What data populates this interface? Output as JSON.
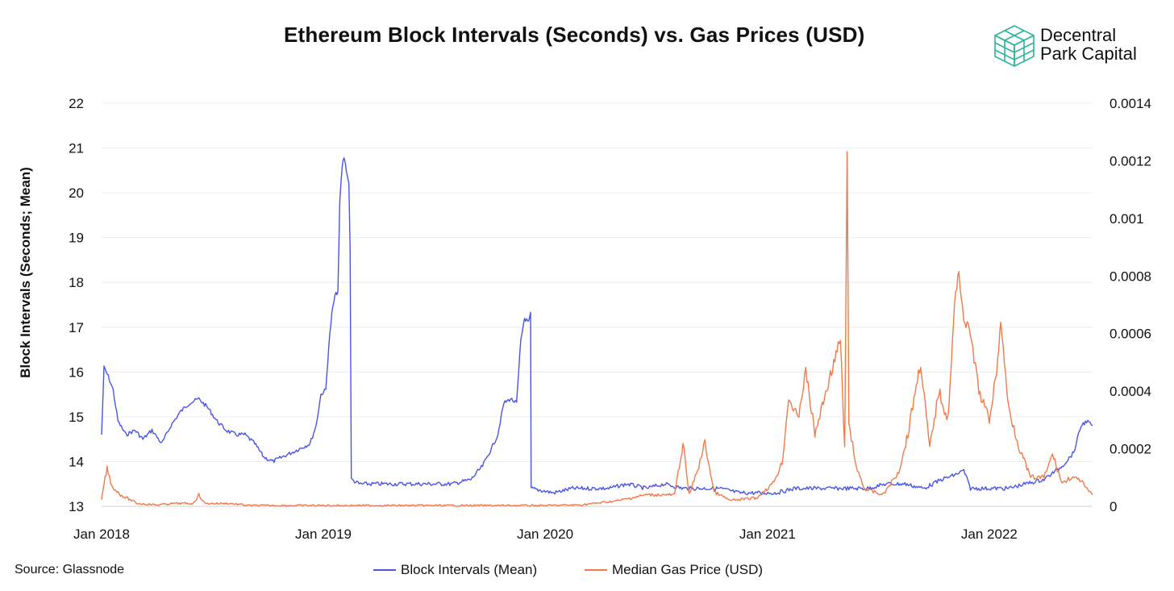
{
  "title": "Ethereum Block Intervals (Seconds) vs. Gas Prices (USD)",
  "brand": {
    "line1": "Decentral",
    "line2": "Park Capital",
    "icon": "cube-grid-icon",
    "color": "#2bb59a"
  },
  "source": "Source: Glassnode",
  "chart_data": {
    "type": "line",
    "title": "Ethereum Block Intervals (Seconds) vs. Gas Prices (USD)",
    "ylabel": "Block Intervals (Seconds; Mean)",
    "y_left_ticks": [
      "22",
      "21",
      "20",
      "19",
      "18",
      "17",
      "16",
      "15",
      "14",
      "13"
    ],
    "y_right_ticks": [
      "0.0014",
      "0.0012",
      "0.001",
      "0.0008",
      "0.0006",
      "0.0004",
      "0.0002",
      "0"
    ],
    "x_ticks": [
      "Jan 2018",
      "Jan 2019",
      "Jan 2020",
      "Jan 2021",
      "Jan 2022"
    ],
    "ylim_left": [
      13,
      22
    ],
    "ylim_right": [
      0,
      0.0014
    ],
    "xlim": [
      "2018-01-01",
      "2022-06-20"
    ],
    "grid": true,
    "legend_position": "bottom",
    "series": [
      {
        "name": "Block Intervals (Mean)",
        "axis": "left",
        "color": "#4a55e8",
        "points": [
          [
            "2018-01-01",
            14.6
          ],
          [
            "2018-01-05",
            16.1
          ],
          [
            "2018-01-12",
            15.9
          ],
          [
            "2018-01-20",
            15.6
          ],
          [
            "2018-01-28",
            14.9
          ],
          [
            "2018-02-10",
            14.6
          ],
          [
            "2018-02-25",
            14.7
          ],
          [
            "2018-03-10",
            14.5
          ],
          [
            "2018-03-25",
            14.7
          ],
          [
            "2018-04-10",
            14.4
          ],
          [
            "2018-04-25",
            14.8
          ],
          [
            "2018-05-10",
            15.1
          ],
          [
            "2018-05-25",
            15.3
          ],
          [
            "2018-06-10",
            15.4
          ],
          [
            "2018-06-25",
            15.2
          ],
          [
            "2018-07-10",
            14.9
          ],
          [
            "2018-07-25",
            14.7
          ],
          [
            "2018-08-10",
            14.6
          ],
          [
            "2018-08-25",
            14.6
          ],
          [
            "2018-09-10",
            14.4
          ],
          [
            "2018-09-25",
            14.1
          ],
          [
            "2018-10-10",
            14.0
          ],
          [
            "2018-10-25",
            14.1
          ],
          [
            "2018-11-10",
            14.2
          ],
          [
            "2018-11-25",
            14.3
          ],
          [
            "2018-12-10",
            14.4
          ],
          [
            "2018-12-20",
            14.8
          ],
          [
            "2018-12-28",
            15.5
          ],
          [
            "2019-01-05",
            15.6
          ],
          [
            "2019-01-10",
            16.6
          ],
          [
            "2019-01-15",
            17.3
          ],
          [
            "2019-01-20",
            17.7
          ],
          [
            "2019-01-25",
            17.8
          ],
          [
            "2019-01-28",
            19.8
          ],
          [
            "2019-02-01",
            20.6
          ],
          [
            "2019-02-04",
            20.8
          ],
          [
            "2019-02-08",
            20.5
          ],
          [
            "2019-02-12",
            20.2
          ],
          [
            "2019-02-14",
            18.8
          ],
          [
            "2019-02-16",
            13.6
          ],
          [
            "2019-03-01",
            13.5
          ],
          [
            "2019-04-01",
            13.5
          ],
          [
            "2019-05-01",
            13.5
          ],
          [
            "2019-06-01",
            13.5
          ],
          [
            "2019-07-01",
            13.5
          ],
          [
            "2019-08-01",
            13.5
          ],
          [
            "2019-09-01",
            13.6
          ],
          [
            "2019-09-20",
            13.9
          ],
          [
            "2019-10-05",
            14.3
          ],
          [
            "2019-10-15",
            14.6
          ],
          [
            "2019-10-25",
            15.3
          ],
          [
            "2019-11-05",
            15.4
          ],
          [
            "2019-11-15",
            15.3
          ],
          [
            "2019-11-22",
            16.7
          ],
          [
            "2019-11-28",
            17.2
          ],
          [
            "2019-12-05",
            17.1
          ],
          [
            "2019-12-08",
            17.3
          ],
          [
            "2019-12-09",
            13.4
          ],
          [
            "2020-01-15",
            13.3
          ],
          [
            "2020-02-15",
            13.4
          ],
          [
            "2020-03-15",
            13.4
          ],
          [
            "2020-04-15",
            13.4
          ],
          [
            "2020-05-15",
            13.5
          ],
          [
            "2020-06-15",
            13.4
          ],
          [
            "2020-07-15",
            13.5
          ],
          [
            "2020-08-15",
            13.4
          ],
          [
            "2020-09-15",
            13.4
          ],
          [
            "2020-10-15",
            13.4
          ],
          [
            "2020-11-15",
            13.3
          ],
          [
            "2020-12-15",
            13.3
          ],
          [
            "2021-01-15",
            13.3
          ],
          [
            "2021-02-15",
            13.4
          ],
          [
            "2021-03-15",
            13.4
          ],
          [
            "2021-04-15",
            13.4
          ],
          [
            "2021-05-15",
            13.4
          ],
          [
            "2021-06-15",
            13.4
          ],
          [
            "2021-07-15",
            13.5
          ],
          [
            "2021-08-15",
            13.5
          ],
          [
            "2021-09-15",
            13.4
          ],
          [
            "2021-10-15",
            13.6
          ],
          [
            "2021-11-05",
            13.7
          ],
          [
            "2021-11-20",
            13.8
          ],
          [
            "2021-12-01",
            13.4
          ],
          [
            "2022-01-01",
            13.4
          ],
          [
            "2022-02-01",
            13.4
          ],
          [
            "2022-03-01",
            13.5
          ],
          [
            "2022-04-01",
            13.6
          ],
          [
            "2022-05-01",
            13.9
          ],
          [
            "2022-05-20",
            14.2
          ],
          [
            "2022-06-01",
            14.8
          ],
          [
            "2022-06-10",
            14.9
          ],
          [
            "2022-06-20",
            14.8
          ]
        ]
      },
      {
        "name": "Median Gas Price (USD)",
        "axis": "right",
        "color": "#f07a4a",
        "points": [
          [
            "2018-01-01",
            2e-05
          ],
          [
            "2018-01-05",
            8e-05
          ],
          [
            "2018-01-10",
            0.00013
          ],
          [
            "2018-01-18",
            7e-05
          ],
          [
            "2018-02-01",
            4e-05
          ],
          [
            "2018-03-01",
            1e-05
          ],
          [
            "2018-04-01",
            5e-06
          ],
          [
            "2018-05-01",
            1e-05
          ],
          [
            "2018-06-01",
            1e-05
          ],
          [
            "2018-06-10",
            4e-05
          ],
          [
            "2018-06-20",
            1e-05
          ],
          [
            "2018-08-01",
            1e-05
          ],
          [
            "2018-09-01",
            3e-06
          ],
          [
            "2019-01-01",
            3e-06
          ],
          [
            "2019-06-01",
            3e-06
          ],
          [
            "2020-01-01",
            3e-06
          ],
          [
            "2020-03-01",
            5e-06
          ],
          [
            "2020-05-01",
            2e-05
          ],
          [
            "2020-06-15",
            4e-05
          ],
          [
            "2020-08-01",
            4e-05
          ],
          [
            "2020-08-15",
            0.00022
          ],
          [
            "2020-08-25",
            4e-05
          ],
          [
            "2020-09-10",
            0.00014
          ],
          [
            "2020-09-20",
            0.00022
          ],
          [
            "2020-10-05",
            5e-05
          ],
          [
            "2020-11-01",
            2e-05
          ],
          [
            "2020-12-15",
            3e-05
          ],
          [
            "2021-01-10",
            8e-05
          ],
          [
            "2021-01-25",
            0.00015
          ],
          [
            "2021-02-05",
            0.00038
          ],
          [
            "2021-02-20",
            0.0003
          ],
          [
            "2021-03-05",
            0.00047
          ],
          [
            "2021-03-20",
            0.00025
          ],
          [
            "2021-04-05",
            0.00038
          ],
          [
            "2021-04-20",
            0.0005
          ],
          [
            "2021-05-01",
            0.00058
          ],
          [
            "2021-05-08",
            0.0002
          ],
          [
            "2021-05-12",
            0.00122
          ],
          [
            "2021-05-15",
            0.0003
          ],
          [
            "2021-05-25",
            0.00015
          ],
          [
            "2021-06-10",
            6e-05
          ],
          [
            "2021-07-10",
            4e-05
          ],
          [
            "2021-08-05",
            0.00012
          ],
          [
            "2021-08-20",
            0.00025
          ],
          [
            "2021-09-01",
            0.0004
          ],
          [
            "2021-09-10",
            0.0005
          ],
          [
            "2021-09-25",
            0.0002
          ],
          [
            "2021-10-10",
            0.0004
          ],
          [
            "2021-10-25",
            0.0003
          ],
          [
            "2021-11-05",
            0.0007
          ],
          [
            "2021-11-12",
            0.00082
          ],
          [
            "2021-11-20",
            0.00065
          ],
          [
            "2021-12-01",
            0.0006
          ],
          [
            "2021-12-15",
            0.0004
          ],
          [
            "2022-01-01",
            0.0003
          ],
          [
            "2022-01-15",
            0.0005
          ],
          [
            "2022-01-20",
            0.00065
          ],
          [
            "2022-02-01",
            0.00035
          ],
          [
            "2022-02-20",
            0.0002
          ],
          [
            "2022-03-10",
            0.0001
          ],
          [
            "2022-04-01",
            0.0001
          ],
          [
            "2022-04-15",
            0.00018
          ],
          [
            "2022-05-01",
            8e-05
          ],
          [
            "2022-05-15",
            0.0001
          ],
          [
            "2022-06-01",
            9e-05
          ],
          [
            "2022-06-10",
            6e-05
          ],
          [
            "2022-06-20",
            4e-05
          ]
        ]
      }
    ]
  }
}
